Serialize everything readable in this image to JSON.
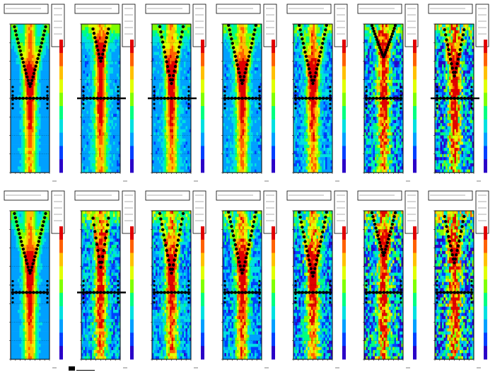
{
  "figure": {
    "rows": 2,
    "cols": 7,
    "colors": {
      "frame": "#000000",
      "background": "#ffffff",
      "palette": [
        "#2a00c8",
        "#0040ff",
        "#00a0ff",
        "#00e0e0",
        "#00ff80",
        "#80ff00",
        "#e0ff00",
        "#ffc000",
        "#ff6000",
        "#e00000"
      ]
    }
  },
  "footer": {
    "note": ""
  },
  "chart_data": [
    {
      "type": "heatmap",
      "row": 0,
      "col": 0,
      "title": "",
      "v_sharpness": 1.2,
      "v_min": 0.42,
      "noise": 0.05,
      "band_y": 0.5,
      "band_full": false,
      "colorbar": [
        0.0,
        1.0
      ]
    },
    {
      "type": "heatmap",
      "row": 0,
      "col": 1,
      "title": "",
      "v_sharpness": 2.2,
      "v_min": 0.25,
      "noise": 0.08,
      "band_y": 0.5,
      "band_full": true,
      "colorbar": [
        0.0,
        1.0
      ]
    },
    {
      "type": "heatmap",
      "row": 0,
      "col": 2,
      "title": "",
      "v_sharpness": 1.6,
      "v_min": 0.4,
      "noise": 0.08,
      "band_y": 0.5,
      "band_full": true,
      "colorbar": [
        0.0,
        1.0
      ]
    },
    {
      "type": "heatmap",
      "row": 0,
      "col": 3,
      "title": "",
      "v_sharpness": 1.4,
      "v_min": 0.4,
      "noise": 0.08,
      "band_y": 0.5,
      "band_full": false,
      "colorbar": [
        0.0,
        1.0
      ]
    },
    {
      "type": "heatmap",
      "row": 0,
      "col": 4,
      "title": "",
      "v_sharpness": 1.4,
      "v_min": 0.4,
      "noise": 0.15,
      "band_y": 0.5,
      "band_full": false,
      "colorbar": [
        0.0,
        1.0
      ]
    },
    {
      "type": "heatmap",
      "row": 0,
      "col": 5,
      "title": "",
      "v_sharpness": 1.6,
      "v_min": 0.22,
      "noise": 0.28,
      "band_y": 0.5,
      "band_full": false,
      "colorbar": [
        0.0,
        1.0
      ]
    },
    {
      "type": "heatmap",
      "row": 0,
      "col": 6,
      "title": "",
      "v_sharpness": 1.8,
      "v_min": 0.35,
      "noise": 0.35,
      "band_y": 0.5,
      "band_full": true,
      "colorbar": [
        0.0,
        1.0
      ]
    },
    {
      "type": "heatmap",
      "row": 1,
      "col": 0,
      "title": "",
      "v_sharpness": 1.2,
      "v_min": 0.42,
      "noise": 0.05,
      "band_y": 0.55,
      "band_full": false,
      "colorbar": [
        0.0,
        1.0
      ]
    },
    {
      "type": "heatmap",
      "row": 1,
      "col": 1,
      "title": "",
      "v_sharpness": 2.2,
      "v_min": 0.38,
      "noise": 0.22,
      "band_y": 0.55,
      "band_full": true,
      "colorbar": [
        0.0,
        1.0
      ]
    },
    {
      "type": "heatmap",
      "row": 1,
      "col": 2,
      "title": "",
      "v_sharpness": 1.6,
      "v_min": 0.42,
      "noise": 0.2,
      "band_y": 0.55,
      "band_full": false,
      "colorbar": [
        0.0,
        1.0
      ]
    },
    {
      "type": "heatmap",
      "row": 1,
      "col": 3,
      "title": "",
      "v_sharpness": 1.4,
      "v_min": 0.42,
      "noise": 0.2,
      "band_y": 0.55,
      "band_full": false,
      "colorbar": [
        0.0,
        1.0
      ]
    },
    {
      "type": "heatmap",
      "row": 1,
      "col": 4,
      "title": "",
      "v_sharpness": 1.4,
      "v_min": 0.44,
      "noise": 0.25,
      "band_y": 0.55,
      "band_full": false,
      "colorbar": [
        0.0,
        1.0
      ]
    },
    {
      "type": "heatmap",
      "row": 1,
      "col": 5,
      "title": "",
      "v_sharpness": 1.6,
      "v_min": 0.3,
      "noise": 0.38,
      "band_y": 0.55,
      "band_full": false,
      "colorbar": [
        0.0,
        1.0
      ]
    },
    {
      "type": "heatmap",
      "row": 1,
      "col": 6,
      "title": "",
      "v_sharpness": 1.8,
      "v_min": 0.35,
      "noise": 0.42,
      "band_y": 0.55,
      "band_full": false,
      "colorbar": [
        0.0,
        1.0
      ]
    }
  ]
}
